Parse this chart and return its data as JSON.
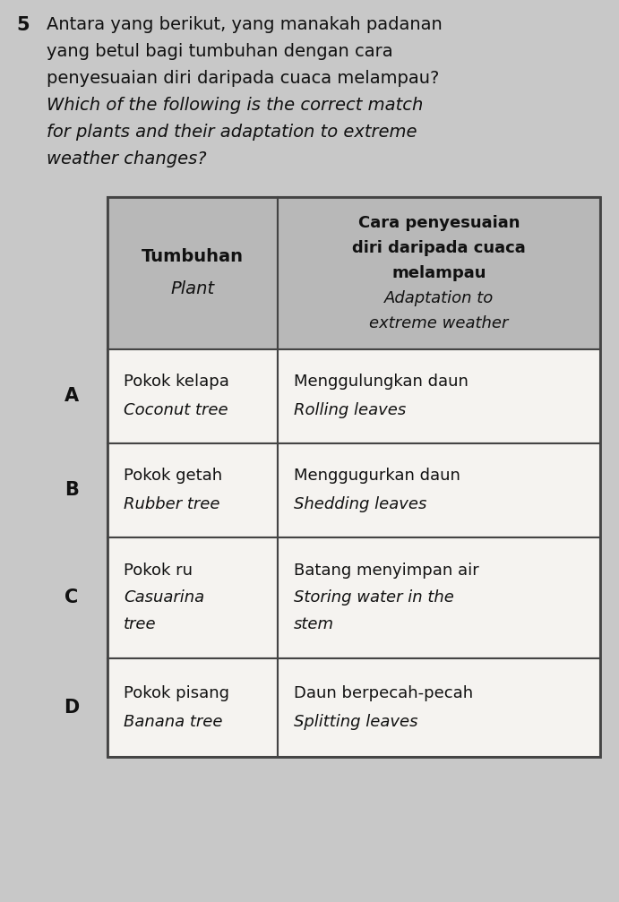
{
  "question_number": "5",
  "q_lines_normal": [
    "Antara yang berikut, yang manakah padanan",
    "yang betul bagi tumbuhan dengan cara",
    "penyesuaian diri daripada cuaca melampau?"
  ],
  "q_lines_italic": [
    "Which of the following is the correct match",
    "for plants and their adaptation to extreme",
    "weather changes?"
  ],
  "header_col1_bold": "Tumbuhan",
  "header_col1_italic": "Plant",
  "header_col2_bold": [
    "Cara penyesuaian",
    "diri daripada cuaca",
    "melampau"
  ],
  "header_col2_italic": [
    "Adaptation to",
    "extreme weather"
  ],
  "rows": [
    {
      "option": "A",
      "plant_normal": "Pokok kelapa",
      "plant_italic": "Coconut tree",
      "adapt_normal": "Menggulungkan daun",
      "adapt_italic": "Rolling leaves",
      "adapt_extra": null
    },
    {
      "option": "B",
      "plant_normal": "Pokok getah",
      "plant_italic": "Rubber tree",
      "adapt_normal": "Menggugurkan daun",
      "adapt_italic": "Shedding leaves",
      "adapt_extra": null
    },
    {
      "option": "C",
      "plant_normal": "Pokok ru",
      "plant_italic": "Casuarina",
      "plant_extra": "tree",
      "adapt_normal": "Batang menyimpan air",
      "adapt_italic": "Storing water in the",
      "adapt_extra": "stem"
    },
    {
      "option": "D",
      "plant_normal": "Pokok pisang",
      "plant_italic": "Banana tree",
      "adapt_normal": "Daun berpecah-pecah",
      "adapt_italic": "Splitting leaves",
      "adapt_extra": null
    }
  ],
  "bg_color": "#c8c8c8",
  "header_cell_color": "#b8b8b8",
  "data_cell_color": "#f5f3f0",
  "border_color": "#444444",
  "text_color": "#111111"
}
